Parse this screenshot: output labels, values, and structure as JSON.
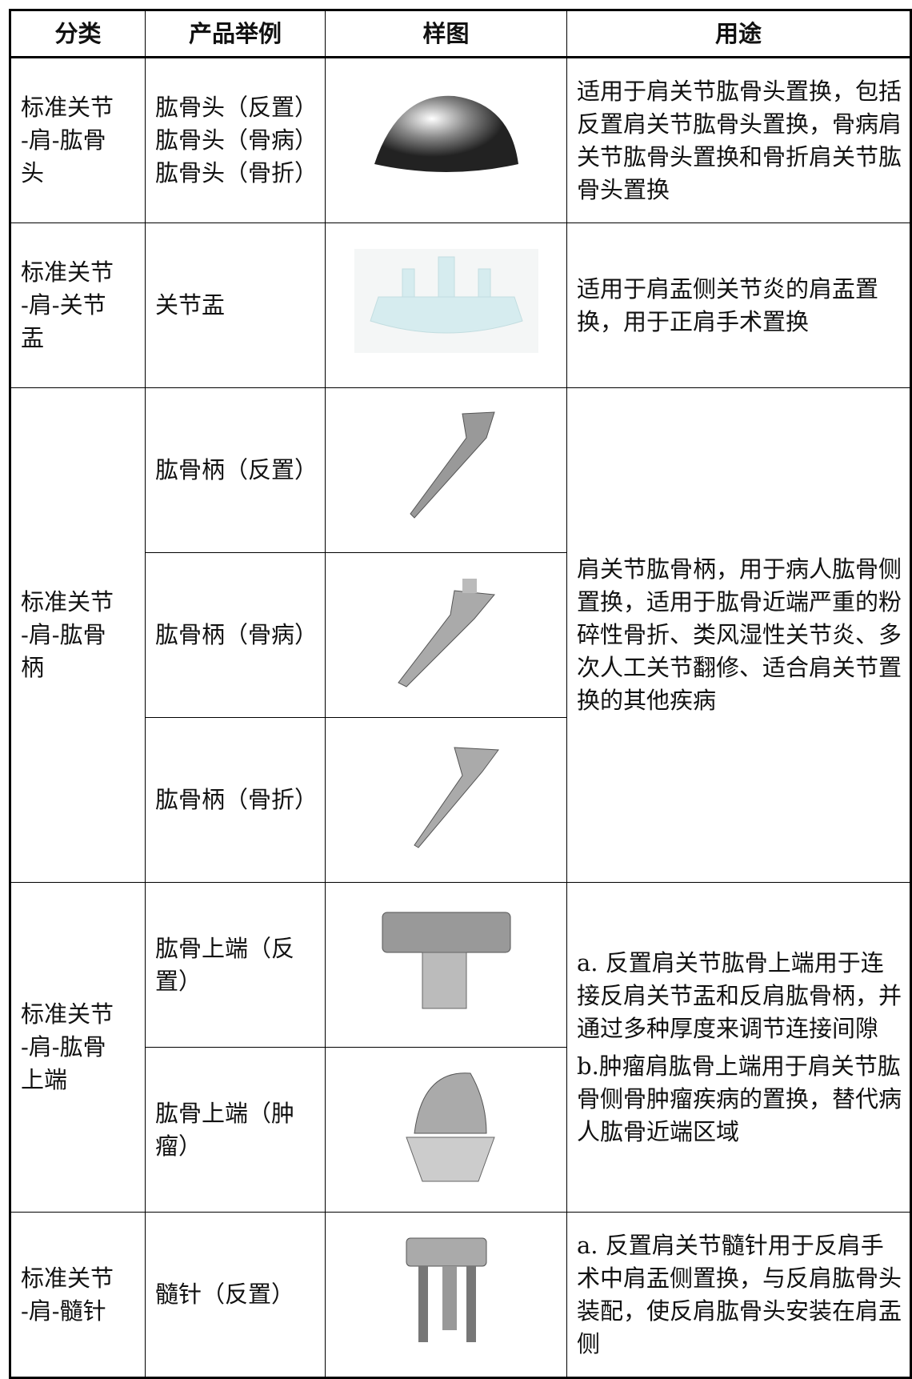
{
  "table": {
    "header": [
      "分类",
      "产品举例",
      "样图",
      "用途"
    ],
    "groups": [
      {
        "category": [
          "标准关节",
          "-肩-肱骨",
          "头"
        ],
        "items": [
          {
            "product": [
              "肱骨头（反置）",
              "肱骨头（骨病）",
              "肱骨头（骨折）"
            ]
          }
        ],
        "usage": [
          "适用于肩关节肱骨头置换，包括反置肩关节肱骨头置换，骨病肩关节肱骨头置换和骨折肩关节肱骨头置换"
        ]
      },
      {
        "category": [
          "标准关节",
          "-肩-关节",
          "盂"
        ],
        "items": [
          {
            "product": [
              "关节盂"
            ]
          }
        ],
        "usage": [
          "适用于肩盂侧关节炎的肩盂置换，用于正肩手术置换"
        ]
      },
      {
        "category": [
          "标准关节",
          "-肩-肱骨",
          "柄"
        ],
        "items": [
          {
            "product": [
              "肱骨柄（反置）"
            ]
          },
          {
            "product": [
              "肱骨柄（骨病）"
            ]
          },
          {
            "product": [
              "肱骨柄（骨折）"
            ]
          }
        ],
        "usage": [
          "肩关节肱骨柄，用于病人肱骨侧置换，适用于肱骨近端严重的粉碎性骨折、类风湿性关节炎、多次人工关节翻修、适合肩关节置换的其他疾病"
        ]
      },
      {
        "category": [
          "标准关节",
          "-肩-肱骨",
          "上端"
        ],
        "items": [
          {
            "product": [
              "肱骨上端（反",
              "置）"
            ]
          },
          {
            "product": [
              "肱骨上端（肿",
              "瘤）"
            ]
          }
        ],
        "usage": [
          "a. 反置肩关节肱骨上端用于连接反肩关节盂和反肩肱骨柄，并通过多种厚度来调节连接间隙",
          "b.肿瘤肩肱骨上端用于肩关节肱骨侧骨肿瘤疾病的置换，替代病人肱骨近端区域"
        ]
      },
      {
        "category": [
          "标准关节",
          "-肩-髓针"
        ],
        "items": [
          {
            "product": [
              "髓针（反置）"
            ]
          }
        ],
        "usage": [
          "a. 反置肩关节髓针用于反肩手术中肩盂侧置换，与反肩肱骨头装配，使反肩肱骨头安装在肩盂侧"
        ]
      }
    ]
  }
}
